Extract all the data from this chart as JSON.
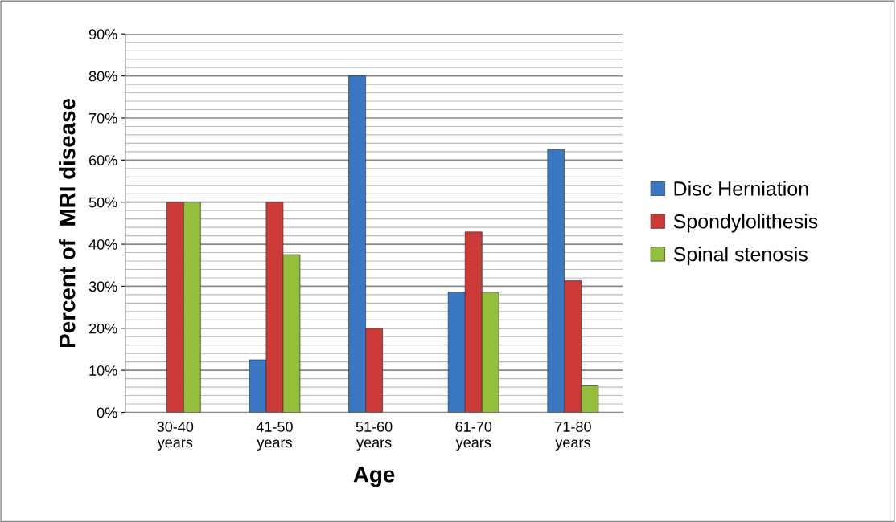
{
  "chart_data": {
    "type": "bar",
    "xlabel": "Age",
    "ylabel": "Percent of  MRI disease",
    "categories": [
      "30-40\nyears",
      "41-50\nyears",
      "51-60\nyears",
      "61-70\nyears",
      "71-80\nyears"
    ],
    "series": [
      {
        "name": "Disc Herniation",
        "color": "#3a78c4",
        "values": [
          null,
          12.5,
          80,
          28.6,
          62.5
        ]
      },
      {
        "name": "Spondylolithesis",
        "color": "#cc3a38",
        "values": [
          50,
          50,
          20,
          42.9,
          31.3
        ]
      },
      {
        "name": "Spinal stenosis",
        "color": "#93bf3c",
        "values": [
          50,
          37.5,
          null,
          28.6,
          6.3
        ]
      }
    ],
    "ylim": [
      0,
      90
    ],
    "yticks": [
      {
        "value": 0,
        "label": "0%"
      },
      {
        "value": 10,
        "label": "10%"
      },
      {
        "value": 20,
        "label": "20%"
      },
      {
        "value": 30,
        "label": "30%"
      },
      {
        "value": 40,
        "label": "40%"
      },
      {
        "value": 50,
        "label": "50%"
      },
      {
        "value": 60,
        "label": "60%"
      },
      {
        "value": 70,
        "label": "70%"
      },
      {
        "value": 80,
        "label": "80%"
      },
      {
        "value": 90,
        "label": "90%"
      }
    ],
    "grid": "y",
    "legend": "right"
  }
}
